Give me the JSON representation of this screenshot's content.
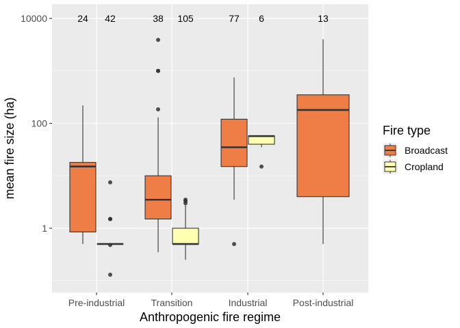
{
  "chart_data": {
    "type": "box",
    "xlabel": "Anthropogenic fire regime",
    "ylabel": "mean fire size (ha)",
    "yscale": "log10",
    "ylim": [
      0.06,
      20000
    ],
    "yticks": [
      1,
      100,
      10000
    ],
    "ytick_labels": [
      "1",
      "100",
      "10000"
    ],
    "categories": [
      "Pre-industrial",
      "Transition",
      "Industrial",
      "Post-industrial"
    ],
    "grid": true,
    "legend": {
      "title": "Fire type",
      "position": "right",
      "entries": [
        {
          "key": "Broadcast",
          "label": "Broadcast",
          "color": "#EE7E45"
        },
        {
          "key": "Cropland",
          "label": "Cropland",
          "color": "#FFFFB2"
        }
      ]
    },
    "boxes": [
      {
        "category": "Pre-industrial",
        "type": "Broadcast",
        "n": "24",
        "min": 0.5,
        "q1": 0.85,
        "median": 15,
        "q3": 18,
        "max": 220,
        "outliers": []
      },
      {
        "category": "Pre-industrial",
        "type": "Cropland",
        "n": "42",
        "min": 0.5,
        "q1": 0.5,
        "median": 0.5,
        "q3": 0.5,
        "max": 0.5,
        "outliers": [
          7.5,
          1.5,
          1.5,
          1.5,
          0.48,
          0.13
        ]
      },
      {
        "category": "Transition",
        "type": "Broadcast",
        "n": "38",
        "min": 0.35,
        "q1": 1.5,
        "median": 3.5,
        "q3": 10,
        "max": 130,
        "outliers": [
          185,
          1000,
          1000,
          3900
        ]
      },
      {
        "category": "Transition",
        "type": "Cropland",
        "n": "105",
        "min": 0.25,
        "q1": 0.5,
        "median": 0.5,
        "q3": 1.0,
        "max": 2.8,
        "outliers": [
          3.5,
          3.3,
          3.0
        ]
      },
      {
        "category": "Industrial",
        "type": "Broadcast",
        "n": "77",
        "min": 3.5,
        "q1": 15,
        "median": 35,
        "q3": 120,
        "max": 750,
        "outliers": [
          0.5
        ]
      },
      {
        "category": "Industrial",
        "type": "Cropland",
        "n": "6",
        "min": 35,
        "q1": 40,
        "median": 57,
        "q3": 58,
        "max": 58,
        "outliers": [
          15
        ]
      },
      {
        "category": "Post-industrial",
        "type": "Broadcast",
        "n": "13",
        "min": 0.5,
        "q1": 4,
        "median": 180,
        "q3": 350,
        "max": 4000,
        "outliers": []
      }
    ]
  }
}
